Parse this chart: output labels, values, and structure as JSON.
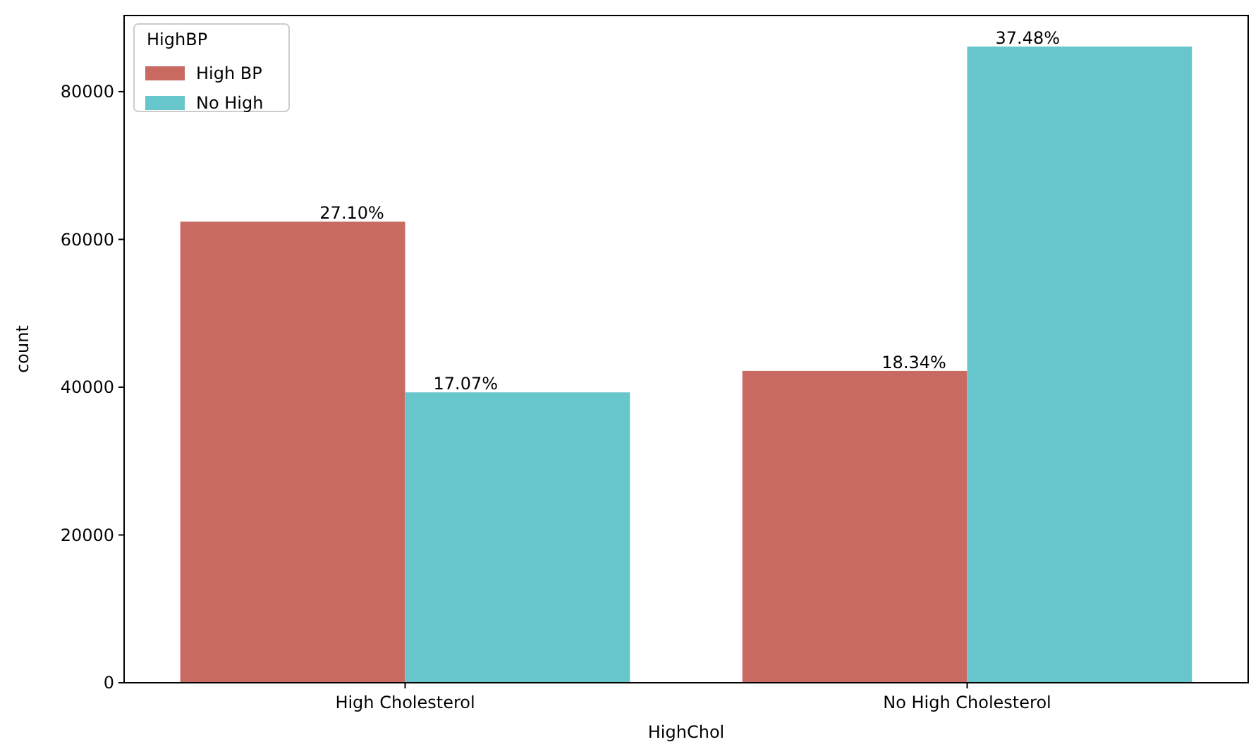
{
  "chart_data": {
    "type": "bar",
    "xlabel": "HighChol",
    "ylabel": "count",
    "categories": [
      "High Cholesterol",
      "No High Cholesterol"
    ],
    "series": [
      {
        "name": "High BP",
        "color": "#c96a62",
        "values": [
          62400,
          42200
        ]
      },
      {
        "name": "No High",
        "color": "#67c5cc",
        "values": [
          39300,
          86100
        ]
      }
    ],
    "annotations": [
      {
        "text": "27.10%",
        "x": "High Cholesterol",
        "y": 62400
      },
      {
        "text": "17.07%",
        "x": "High Cholesterol",
        "y": 39300
      },
      {
        "text": "18.34%",
        "x": "No High Cholesterol",
        "y": 42200
      },
      {
        "text": "37.48%",
        "x": "No High Cholesterol",
        "y": 86100
      }
    ],
    "ylim": [
      0,
      90300
    ],
    "yticks": [
      0,
      20000,
      40000,
      60000,
      80000
    ],
    "grid": false,
    "legend": "top left",
    "legend_title": "HighBP"
  }
}
